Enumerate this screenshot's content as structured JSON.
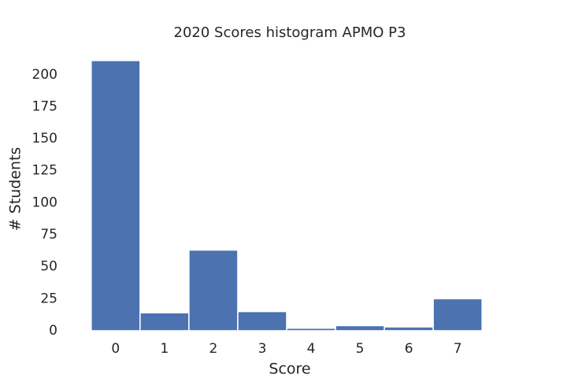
{
  "chart_data": {
    "type": "histogram",
    "title": "2020 Scores histogram APMO P3",
    "x_label": "Score",
    "y_label": "# Students",
    "bins": [
      -0.5,
      0.5,
      1.5,
      2.5,
      3.5,
      4.5,
      5.5,
      6.5,
      7.5
    ],
    "values": [
      211,
      14,
      63,
      15,
      2,
      4,
      3,
      25
    ],
    "color": "#4c72b0",
    "xlim": [
      -0.9,
      7.9
    ],
    "xticks": [
      0,
      1,
      2,
      3,
      4,
      5,
      6,
      7
    ],
    "ylim": [
      0,
      222
    ],
    "yticks": [
      0,
      25,
      50,
      75,
      100,
      125,
      150,
      175,
      200
    ],
    "grid": false
  }
}
